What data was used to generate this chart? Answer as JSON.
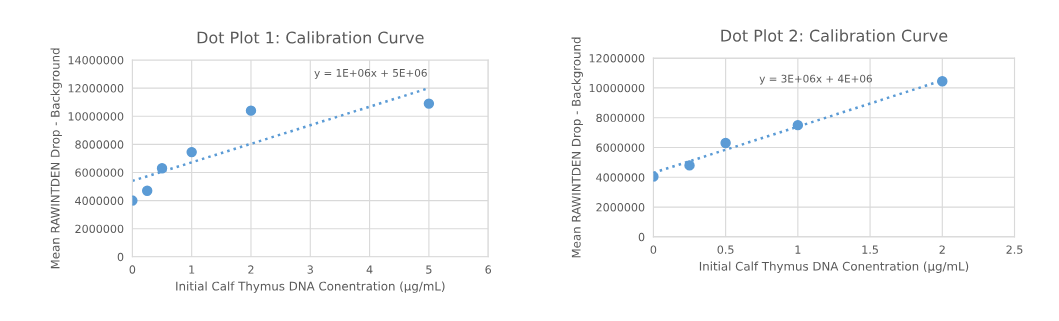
{
  "chart_data": [
    {
      "type": "scatter",
      "title": "Dot Plot 1: Calibration Curve",
      "xlabel": "Initial Calf Thymus DNA Conentration (µg/mL)",
      "ylabel": "Mean RAWINTDEN Drop - Background",
      "xlim": [
        0,
        6
      ],
      "xticks": [
        0,
        1,
        2,
        3,
        4,
        5,
        6
      ],
      "ylim": [
        0,
        14000000
      ],
      "yticks": [
        0,
        2000000,
        4000000,
        6000000,
        8000000,
        10000000,
        12000000,
        14000000
      ],
      "grid": true,
      "marker": "circle",
      "annotations": [
        "y = 1E+06x + 5E+06"
      ],
      "series": [
        {
          "color": "#5b9bd5",
          "x": [
            0,
            0.25,
            0.5,
            1,
            2,
            5
          ],
          "values": [
            4000000,
            4700000,
            6300000,
            7450000,
            10400000,
            10900000
          ]
        },
        {
          "type": "line",
          "line_style": "dotted",
          "marker": "none",
          "color": "#5b9bd5",
          "x": [
            0,
            5
          ],
          "values": [
            5400000,
            12000000
          ]
        }
      ]
    },
    {
      "type": "scatter",
      "title": "Dot Plot 2: Calibration Curve",
      "xlabel": "Initial Calf Thymus DNA Conentration (µg/mL)",
      "ylabel": "Mean RAWINTDEN Drop - Background",
      "xlim": [
        0,
        2.5
      ],
      "xticks": [
        0,
        0.5,
        1,
        1.5,
        2,
        2.5
      ],
      "ylim": [
        0,
        12000000
      ],
      "yticks": [
        0,
        2000000,
        4000000,
        6000000,
        8000000,
        10000000,
        12000000
      ],
      "grid": true,
      "marker": "circle",
      "annotations": [
        "y = 3E+06x + 4E+06"
      ],
      "series": [
        {
          "color": "#5b9bd5",
          "x": [
            0,
            0.25,
            0.5,
            1,
            2
          ],
          "values": [
            4050000,
            4800000,
            6300000,
            7500000,
            10450000
          ]
        },
        {
          "type": "line",
          "line_style": "dotted",
          "marker": "none",
          "color": "#5b9bd5",
          "x": [
            0,
            2
          ],
          "values": [
            4300000,
            10500000
          ]
        }
      ]
    }
  ]
}
